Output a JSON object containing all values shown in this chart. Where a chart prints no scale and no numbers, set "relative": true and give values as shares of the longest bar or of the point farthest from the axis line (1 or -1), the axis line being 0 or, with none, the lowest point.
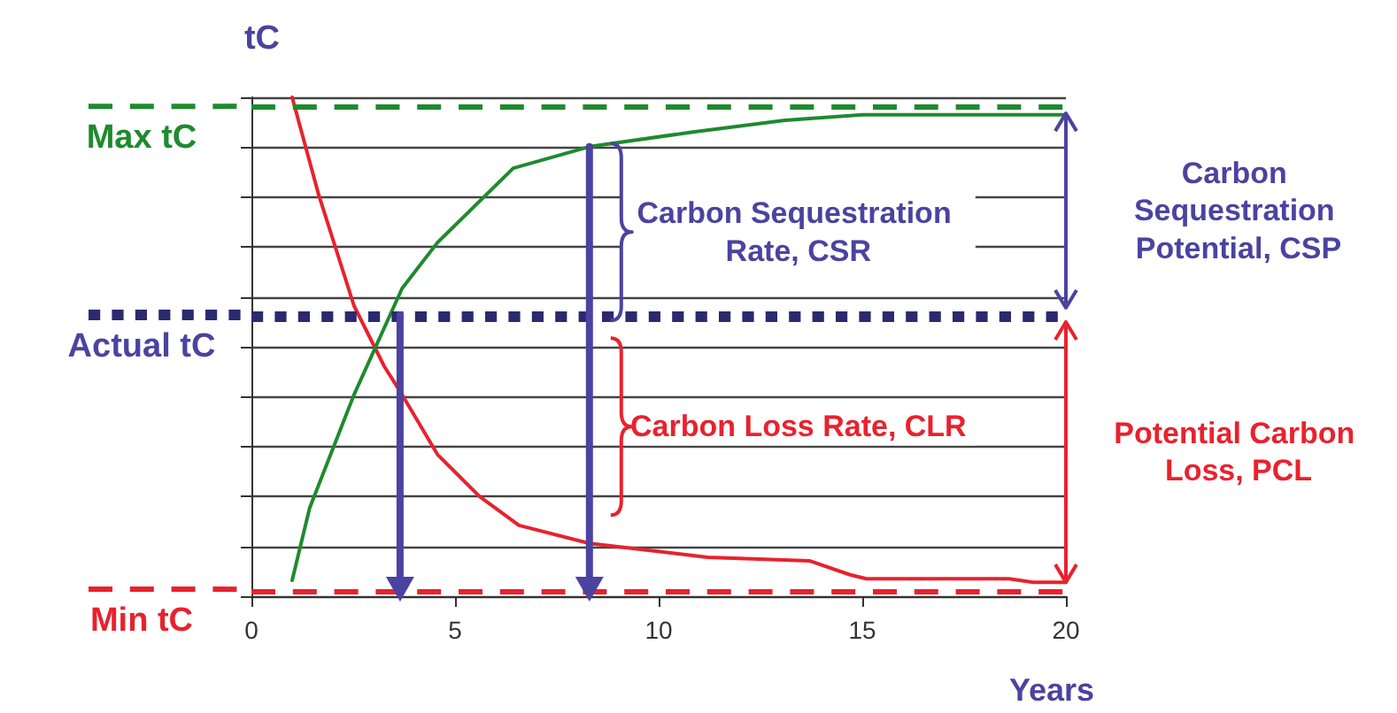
{
  "chart_data": {
    "type": "line",
    "relative": true,
    "ylabel": "tC",
    "xlabel": "Years",
    "xlim": [
      0,
      20
    ],
    "xticks": [
      0,
      5,
      10,
      15,
      20
    ],
    "grid": "y",
    "line_style": "solid",
    "series": [
      {
        "color": "#e8222e",
        "x": [
          1.0,
          1.65,
          2.52,
          3.26,
          3.7,
          4.57,
          5.6,
          6.57,
          8.3,
          11.2,
          13.7,
          14.7,
          15.1,
          18.6,
          19.2,
          20.0
        ],
        "values": [
          1.0,
          0.805,
          0.582,
          0.461,
          0.404,
          0.284,
          0.2,
          0.142,
          0.106,
          0.078,
          0.071,
          0.043,
          0.035,
          0.035,
          0.028,
          0.028
        ]
      },
      {
        "color": "#1f8a2e",
        "x": [
          1.0,
          1.43,
          2.52,
          3.7,
          4.57,
          6.43,
          8.3,
          10.8,
          13.1,
          15.0,
          20.0
        ],
        "values": [
          0.032,
          0.177,
          0.404,
          0.617,
          0.709,
          0.858,
          0.901,
          0.93,
          0.954,
          0.965,
          0.965
        ]
      },
      {
        "color": "#4b43a0",
        "x": [
          3.65,
          3.65
        ],
        "values": [
          0.564,
          0.014
        ]
      },
      {
        "color": "#4b43a0",
        "x": [
          8.3,
          8.3
        ],
        "values": [
          0.901,
          0.014
        ]
      }
    ],
    "ref_lines": [
      {
        "axis": "y",
        "value": 0.982,
        "label": "Max tC",
        "color": "#1f8a2e",
        "line_style": "dashed"
      },
      {
        "axis": "y",
        "value": 0.564,
        "label": "Actual tC",
        "color": "#2b2a6e",
        "line_style": "dotted"
      },
      {
        "axis": "y",
        "value": 0.014,
        "label": "Min tC",
        "color": "#e8222e",
        "line_style": "dashed"
      }
    ],
    "annotations": [
      {
        "text": "Carbon Sequestration Rate, CSR",
        "x": 8.3,
        "y": 0.73
      },
      {
        "text": "Carbon Loss Rate, CLR",
        "x": 8.3,
        "y": 0.34
      },
      "Carbon Sequestration Potential, CSP",
      "Potential Carbon Loss, PCL"
    ]
  }
}
